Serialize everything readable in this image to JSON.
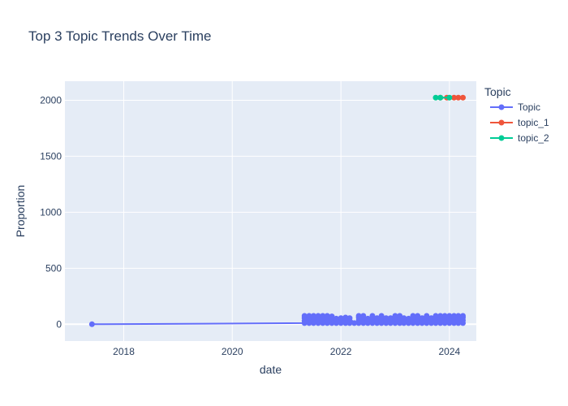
{
  "chart_data": {
    "type": "line",
    "title": "Top 3 Topic Trends Over Time",
    "xlabel": "date",
    "ylabel": "Proportion",
    "x_type": "date",
    "xlim": [
      "2016-12-01",
      "2024-06-30"
    ],
    "ylim": [
      -150,
      2170
    ],
    "x_ticks": [
      {
        "value": "2018-01-01",
        "label": "2018"
      },
      {
        "value": "2020-01-01",
        "label": "2020"
      },
      {
        "value": "2022-01-01",
        "label": "2022"
      },
      {
        "value": "2024-01-01",
        "label": "2024"
      }
    ],
    "y_ticks": [
      0,
      500,
      1000,
      1500,
      2000
    ],
    "grid": true,
    "legend": {
      "title": "Topic",
      "position": "right"
    },
    "series": [
      {
        "name": "Topic",
        "color": "#636efa",
        "points": [
          {
            "x": "2017-06-01",
            "y": 0
          },
          {
            "x": "2021-05-01",
            "y": 10
          },
          {
            "x": "2021-05-01",
            "y": 30
          },
          {
            "x": "2021-05-01",
            "y": 55
          },
          {
            "x": "2021-05-01",
            "y": 75
          },
          {
            "x": "2021-06-01",
            "y": 10
          },
          {
            "x": "2021-06-01",
            "y": 35
          },
          {
            "x": "2021-06-01",
            "y": 60
          },
          {
            "x": "2021-06-01",
            "y": 75
          },
          {
            "x": "2021-07-01",
            "y": 10
          },
          {
            "x": "2021-07-01",
            "y": 30
          },
          {
            "x": "2021-07-01",
            "y": 55
          },
          {
            "x": "2021-07-01",
            "y": 75
          },
          {
            "x": "2021-08-01",
            "y": 10
          },
          {
            "x": "2021-08-01",
            "y": 35
          },
          {
            "x": "2021-08-01",
            "y": 60
          },
          {
            "x": "2021-08-01",
            "y": 75
          },
          {
            "x": "2021-09-01",
            "y": 10
          },
          {
            "x": "2021-09-01",
            "y": 30
          },
          {
            "x": "2021-09-01",
            "y": 55
          },
          {
            "x": "2021-09-01",
            "y": 75
          },
          {
            "x": "2021-10-01",
            "y": 10
          },
          {
            "x": "2021-10-01",
            "y": 35
          },
          {
            "x": "2021-10-01",
            "y": 60
          },
          {
            "x": "2021-10-01",
            "y": 75
          },
          {
            "x": "2021-11-01",
            "y": 10
          },
          {
            "x": "2021-11-01",
            "y": 30
          },
          {
            "x": "2021-11-01",
            "y": 55
          },
          {
            "x": "2021-11-01",
            "y": 70
          },
          {
            "x": "2021-12-01",
            "y": 10
          },
          {
            "x": "2021-12-01",
            "y": 30
          },
          {
            "x": "2021-12-01",
            "y": 50
          },
          {
            "x": "2022-01-01",
            "y": 10
          },
          {
            "x": "2022-01-01",
            "y": 30
          },
          {
            "x": "2022-01-01",
            "y": 55
          },
          {
            "x": "2022-02-01",
            "y": 10
          },
          {
            "x": "2022-02-01",
            "y": 35
          },
          {
            "x": "2022-02-01",
            "y": 60
          },
          {
            "x": "2022-03-01",
            "y": 10
          },
          {
            "x": "2022-03-01",
            "y": 30
          },
          {
            "x": "2022-03-01",
            "y": 55
          },
          {
            "x": "2022-04-01",
            "y": 10
          },
          {
            "x": "2022-05-01",
            "y": 10
          },
          {
            "x": "2022-05-01",
            "y": 35
          },
          {
            "x": "2022-05-01",
            "y": 60
          },
          {
            "x": "2022-05-01",
            "y": 75
          },
          {
            "x": "2022-06-01",
            "y": 10
          },
          {
            "x": "2022-06-01",
            "y": 30
          },
          {
            "x": "2022-06-01",
            "y": 55
          },
          {
            "x": "2022-06-01",
            "y": 75
          },
          {
            "x": "2022-07-01",
            "y": 10
          },
          {
            "x": "2022-07-01",
            "y": 30
          },
          {
            "x": "2022-07-01",
            "y": 50
          },
          {
            "x": "2022-08-01",
            "y": 10
          },
          {
            "x": "2022-08-01",
            "y": 35
          },
          {
            "x": "2022-08-01",
            "y": 60
          },
          {
            "x": "2022-08-01",
            "y": 75
          },
          {
            "x": "2022-09-01",
            "y": 10
          },
          {
            "x": "2022-09-01",
            "y": 30
          },
          {
            "x": "2022-09-01",
            "y": 55
          },
          {
            "x": "2022-10-01",
            "y": 10
          },
          {
            "x": "2022-10-01",
            "y": 30
          },
          {
            "x": "2022-10-01",
            "y": 60
          },
          {
            "x": "2022-10-01",
            "y": 75
          },
          {
            "x": "2022-11-01",
            "y": 10
          },
          {
            "x": "2022-11-01",
            "y": 30
          },
          {
            "x": "2022-11-01",
            "y": 55
          },
          {
            "x": "2022-12-01",
            "y": 10
          },
          {
            "x": "2022-12-01",
            "y": 35
          },
          {
            "x": "2022-12-01",
            "y": 55
          },
          {
            "x": "2023-01-01",
            "y": 10
          },
          {
            "x": "2023-01-01",
            "y": 30
          },
          {
            "x": "2023-01-01",
            "y": 55
          },
          {
            "x": "2023-01-01",
            "y": 75
          },
          {
            "x": "2023-02-01",
            "y": 10
          },
          {
            "x": "2023-02-01",
            "y": 35
          },
          {
            "x": "2023-02-01",
            "y": 60
          },
          {
            "x": "2023-02-01",
            "y": 75
          },
          {
            "x": "2023-03-01",
            "y": 10
          },
          {
            "x": "2023-03-01",
            "y": 30
          },
          {
            "x": "2023-03-01",
            "y": 55
          },
          {
            "x": "2023-04-01",
            "y": 10
          },
          {
            "x": "2023-04-01",
            "y": 30
          },
          {
            "x": "2023-04-01",
            "y": 50
          },
          {
            "x": "2023-05-01",
            "y": 10
          },
          {
            "x": "2023-05-01",
            "y": 35
          },
          {
            "x": "2023-05-01",
            "y": 60
          },
          {
            "x": "2023-05-01",
            "y": 75
          },
          {
            "x": "2023-06-01",
            "y": 10
          },
          {
            "x": "2023-06-01",
            "y": 30
          },
          {
            "x": "2023-06-01",
            "y": 55
          },
          {
            "x": "2023-06-01",
            "y": 75
          },
          {
            "x": "2023-07-01",
            "y": 10
          },
          {
            "x": "2023-07-01",
            "y": 30
          },
          {
            "x": "2023-07-01",
            "y": 55
          },
          {
            "x": "2023-08-01",
            "y": 10
          },
          {
            "x": "2023-08-01",
            "y": 35
          },
          {
            "x": "2023-08-01",
            "y": 60
          },
          {
            "x": "2023-08-01",
            "y": 75
          },
          {
            "x": "2023-09-01",
            "y": 10
          },
          {
            "x": "2023-09-01",
            "y": 30
          },
          {
            "x": "2023-09-01",
            "y": 55
          },
          {
            "x": "2023-10-01",
            "y": 10
          },
          {
            "x": "2023-10-01",
            "y": 35
          },
          {
            "x": "2023-10-01",
            "y": 60
          },
          {
            "x": "2023-10-01",
            "y": 75
          },
          {
            "x": "2023-11-01",
            "y": 10
          },
          {
            "x": "2023-11-01",
            "y": 30
          },
          {
            "x": "2023-11-01",
            "y": 55
          },
          {
            "x": "2023-11-01",
            "y": 75
          },
          {
            "x": "2023-12-01",
            "y": 10
          },
          {
            "x": "2023-12-01",
            "y": 35
          },
          {
            "x": "2023-12-01",
            "y": 60
          },
          {
            "x": "2023-12-01",
            "y": 75
          },
          {
            "x": "2024-01-01",
            "y": 10
          },
          {
            "x": "2024-01-01",
            "y": 30
          },
          {
            "x": "2024-01-01",
            "y": 55
          },
          {
            "x": "2024-01-01",
            "y": 75
          },
          {
            "x": "2024-02-01",
            "y": 10
          },
          {
            "x": "2024-02-01",
            "y": 35
          },
          {
            "x": "2024-02-01",
            "y": 60
          },
          {
            "x": "2024-02-01",
            "y": 75
          },
          {
            "x": "2024-03-01",
            "y": 10
          },
          {
            "x": "2024-03-01",
            "y": 30
          },
          {
            "x": "2024-03-01",
            "y": 55
          },
          {
            "x": "2024-03-01",
            "y": 75
          },
          {
            "x": "2024-04-01",
            "y": 10
          },
          {
            "x": "2024-04-01",
            "y": 35
          },
          {
            "x": "2024-04-01",
            "y": 60
          },
          {
            "x": "2024-04-01",
            "y": 75
          }
        ]
      },
      {
        "name": "topic_1",
        "color": "#ef553b",
        "points": [
          {
            "x": "2023-11-01",
            "y": 2023
          },
          {
            "x": "2023-12-15",
            "y": 2023
          },
          {
            "x": "2024-02-01",
            "y": 2023
          },
          {
            "x": "2024-03-01",
            "y": 2023
          },
          {
            "x": "2024-04-01",
            "y": 2023
          }
        ]
      },
      {
        "name": "topic_2",
        "color": "#00cc96",
        "points": [
          {
            "x": "2023-10-01",
            "y": 2023
          },
          {
            "x": "2023-11-01",
            "y": 2023
          },
          {
            "x": "2024-01-01",
            "y": 2023
          }
        ]
      }
    ]
  }
}
